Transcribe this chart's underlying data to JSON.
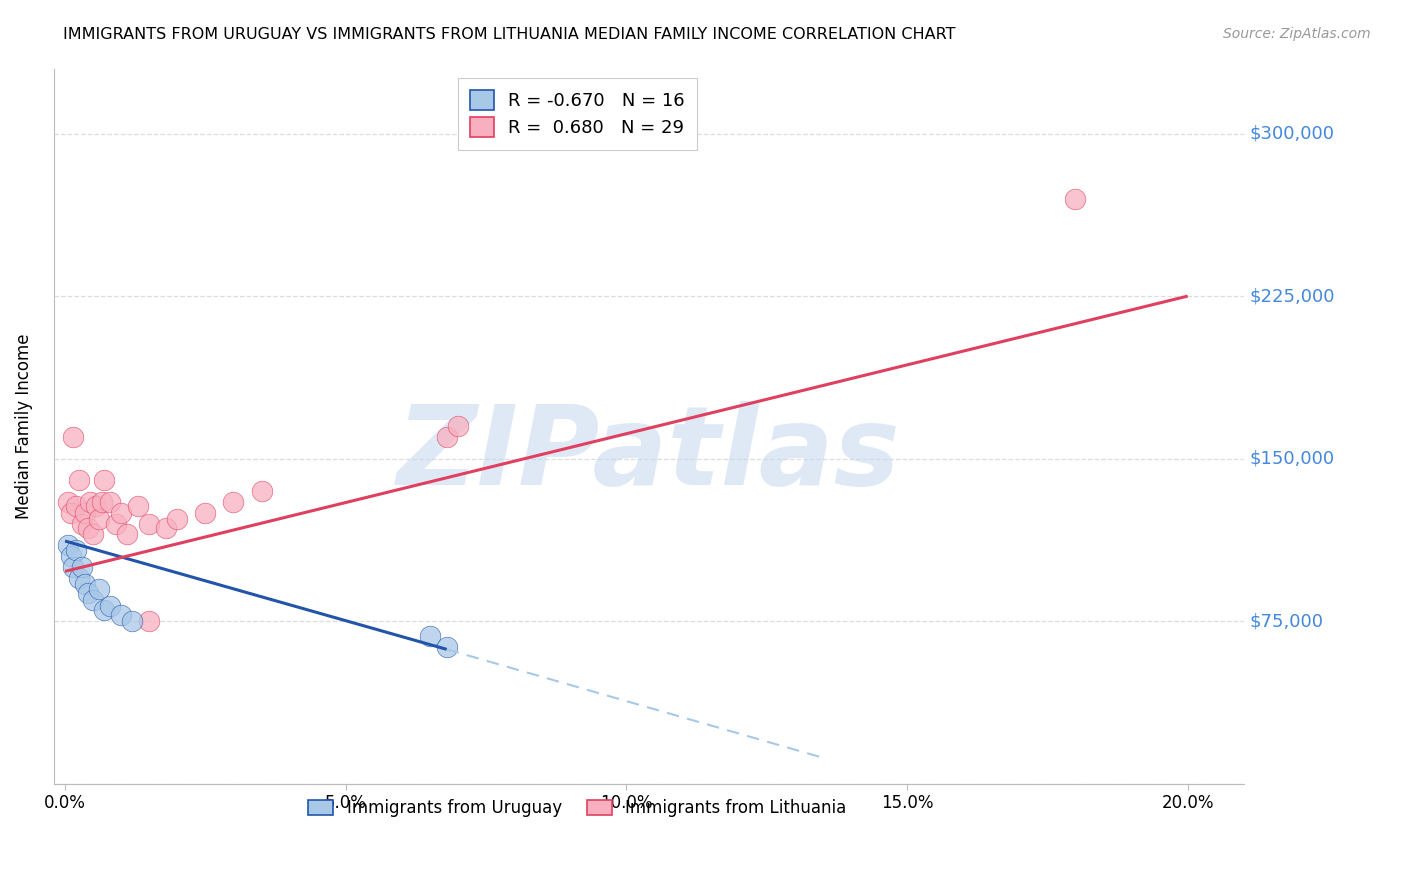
{
  "title": "IMMIGRANTS FROM URUGUAY VS IMMIGRANTS FROM LITHUANIA MEDIAN FAMILY INCOME CORRELATION CHART",
  "source": "Source: ZipAtlas.com",
  "ylabel": "Median Family Income",
  "xlabel_vals": [
    0.0,
    5.0,
    10.0,
    15.0,
    20.0
  ],
  "yticks": [
    0,
    75000,
    150000,
    225000,
    300000
  ],
  "ytick_labels": [
    "",
    "$75,000",
    "$150,000",
    "$225,000",
    "$300,000"
  ],
  "ylim": [
    0,
    330000
  ],
  "xlim": [
    -0.2,
    21.0
  ],
  "uruguay_color": "#a8c8e8",
  "lithuania_color": "#f8b0c0",
  "uruguay_line_color": "#2255aa",
  "lithuania_line_color": "#e04060",
  "uruguay_R": -0.67,
  "uruguay_N": 16,
  "lithuania_R": 0.68,
  "lithuania_N": 29,
  "watermark": "ZIPatlas",
  "watermark_color": "#c5d8f0",
  "ytick_color": "#4488dd",
  "grid_color": "#dddddd",
  "uruguay_x": [
    0.05,
    0.1,
    0.15,
    0.2,
    0.25,
    0.3,
    0.35,
    0.4,
    0.5,
    0.6,
    0.7,
    0.8,
    1.0,
    1.2,
    6.5,
    6.8
  ],
  "uruguay_y": [
    110000,
    105000,
    100000,
    108000,
    95000,
    100000,
    92000,
    88000,
    85000,
    90000,
    80000,
    82000,
    78000,
    75000,
    68000,
    63000
  ],
  "lithuania_x": [
    0.05,
    0.1,
    0.15,
    0.2,
    0.25,
    0.3,
    0.35,
    0.4,
    0.45,
    0.5,
    0.55,
    0.6,
    0.65,
    0.7,
    0.8,
    0.9,
    1.0,
    1.1,
    1.3,
    1.5,
    1.8,
    2.0,
    2.5,
    3.0,
    3.5,
    1.5,
    6.8,
    7.0,
    18.0
  ],
  "lithuania_y": [
    130000,
    125000,
    160000,
    128000,
    140000,
    120000,
    125000,
    118000,
    130000,
    115000,
    128000,
    122000,
    130000,
    140000,
    130000,
    120000,
    125000,
    115000,
    128000,
    120000,
    118000,
    122000,
    125000,
    130000,
    135000,
    75000,
    160000,
    165000,
    270000
  ],
  "uruguay_line_x0": 0.0,
  "uruguay_line_y0": 112000,
  "uruguay_line_x1": 6.8,
  "uruguay_line_y1": 62000,
  "uruguay_dash_x0": 6.8,
  "uruguay_dash_y0": 62000,
  "uruguay_dash_x1": 13.5,
  "uruguay_dash_y1": 12000,
  "lithuania_line_x0": 0.0,
  "lithuania_line_y0": 98000,
  "lithuania_line_x1": 20.0,
  "lithuania_line_y1": 225000
}
